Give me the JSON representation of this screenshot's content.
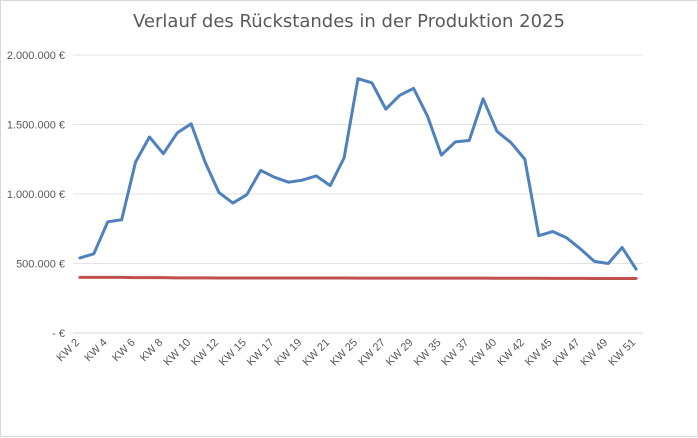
{
  "chart_data": {
    "type": "line",
    "title": "Verlauf des Rückstandes in der Produktion 2025",
    "xlabel": "",
    "ylabel": "",
    "ylim": [
      0,
      2000000
    ],
    "y_ticks": [
      {
        "value": 0,
        "label": "-  €"
      },
      {
        "value": 500000,
        "label": "500.000 €"
      },
      {
        "value": 1000000,
        "label": "1.000.000 €"
      },
      {
        "value": 1500000,
        "label": "1.500.000 €"
      },
      {
        "value": 2000000,
        "label": "2.000.000 €"
      }
    ],
    "grid": true,
    "legend": "none",
    "x_tick_labels": [
      "KW 2",
      "KW 4",
      "KW 6",
      "KW 8",
      "KW 10",
      "KW 12",
      "KW 15",
      "KW 17",
      "KW 19",
      "KW 21",
      "KW 25",
      "KW 27",
      "KW 29",
      "KW 35",
      "KW 37",
      "KW 40",
      "KW 42",
      "KW 45",
      "KW 47",
      "KW 49",
      "KW 51"
    ],
    "categories": [
      "KW 2",
      "",
      "KW 4",
      "",
      "KW 6",
      "",
      "KW 8",
      "",
      "KW 10",
      "",
      "KW 12",
      "",
      "KW 15",
      "",
      "KW 17",
      "",
      "KW 19",
      "",
      "KW 21",
      "",
      "KW 25",
      "",
      "KW 27",
      "",
      "KW 29",
      "",
      "KW 35",
      "",
      "KW 37",
      "",
      "KW 40",
      "",
      "KW 42",
      "",
      "KW 45",
      "",
      "KW 47",
      "",
      "KW 49",
      "",
      "KW 51"
    ],
    "series": [
      {
        "color": "#4f81bd",
        "values": [
          540000,
          570000,
          800000,
          815000,
          1230000,
          1410000,
          1290000,
          1440000,
          1505000,
          1230000,
          1010000,
          935000,
          995000,
          1170000,
          1120000,
          1085000,
          1100000,
          1130000,
          1060000,
          1260000,
          1830000,
          1800000,
          1610000,
          1710000,
          1760000,
          1560000,
          1280000,
          1375000,
          1385000,
          1685000,
          1450000,
          1370000,
          1250000,
          700000,
          730000,
          685000,
          605000,
          515000,
          500000,
          615000,
          460000
        ]
      },
      {
        "color": "#c0504d",
        "values": [
          400000,
          400000,
          400000,
          400000,
          398000,
          398000,
          398000,
          397000,
          397000,
          397000,
          396000,
          396000,
          396000,
          396000,
          396000,
          396000,
          396000,
          396000,
          396000,
          396000,
          395000,
          395000,
          395000,
          395000,
          395000,
          395000,
          395000,
          395000,
          395000,
          395000,
          394000,
          394000,
          394000,
          394000,
          393000,
          393000,
          393000,
          392000,
          392000,
          392000,
          392000
        ]
      }
    ]
  }
}
